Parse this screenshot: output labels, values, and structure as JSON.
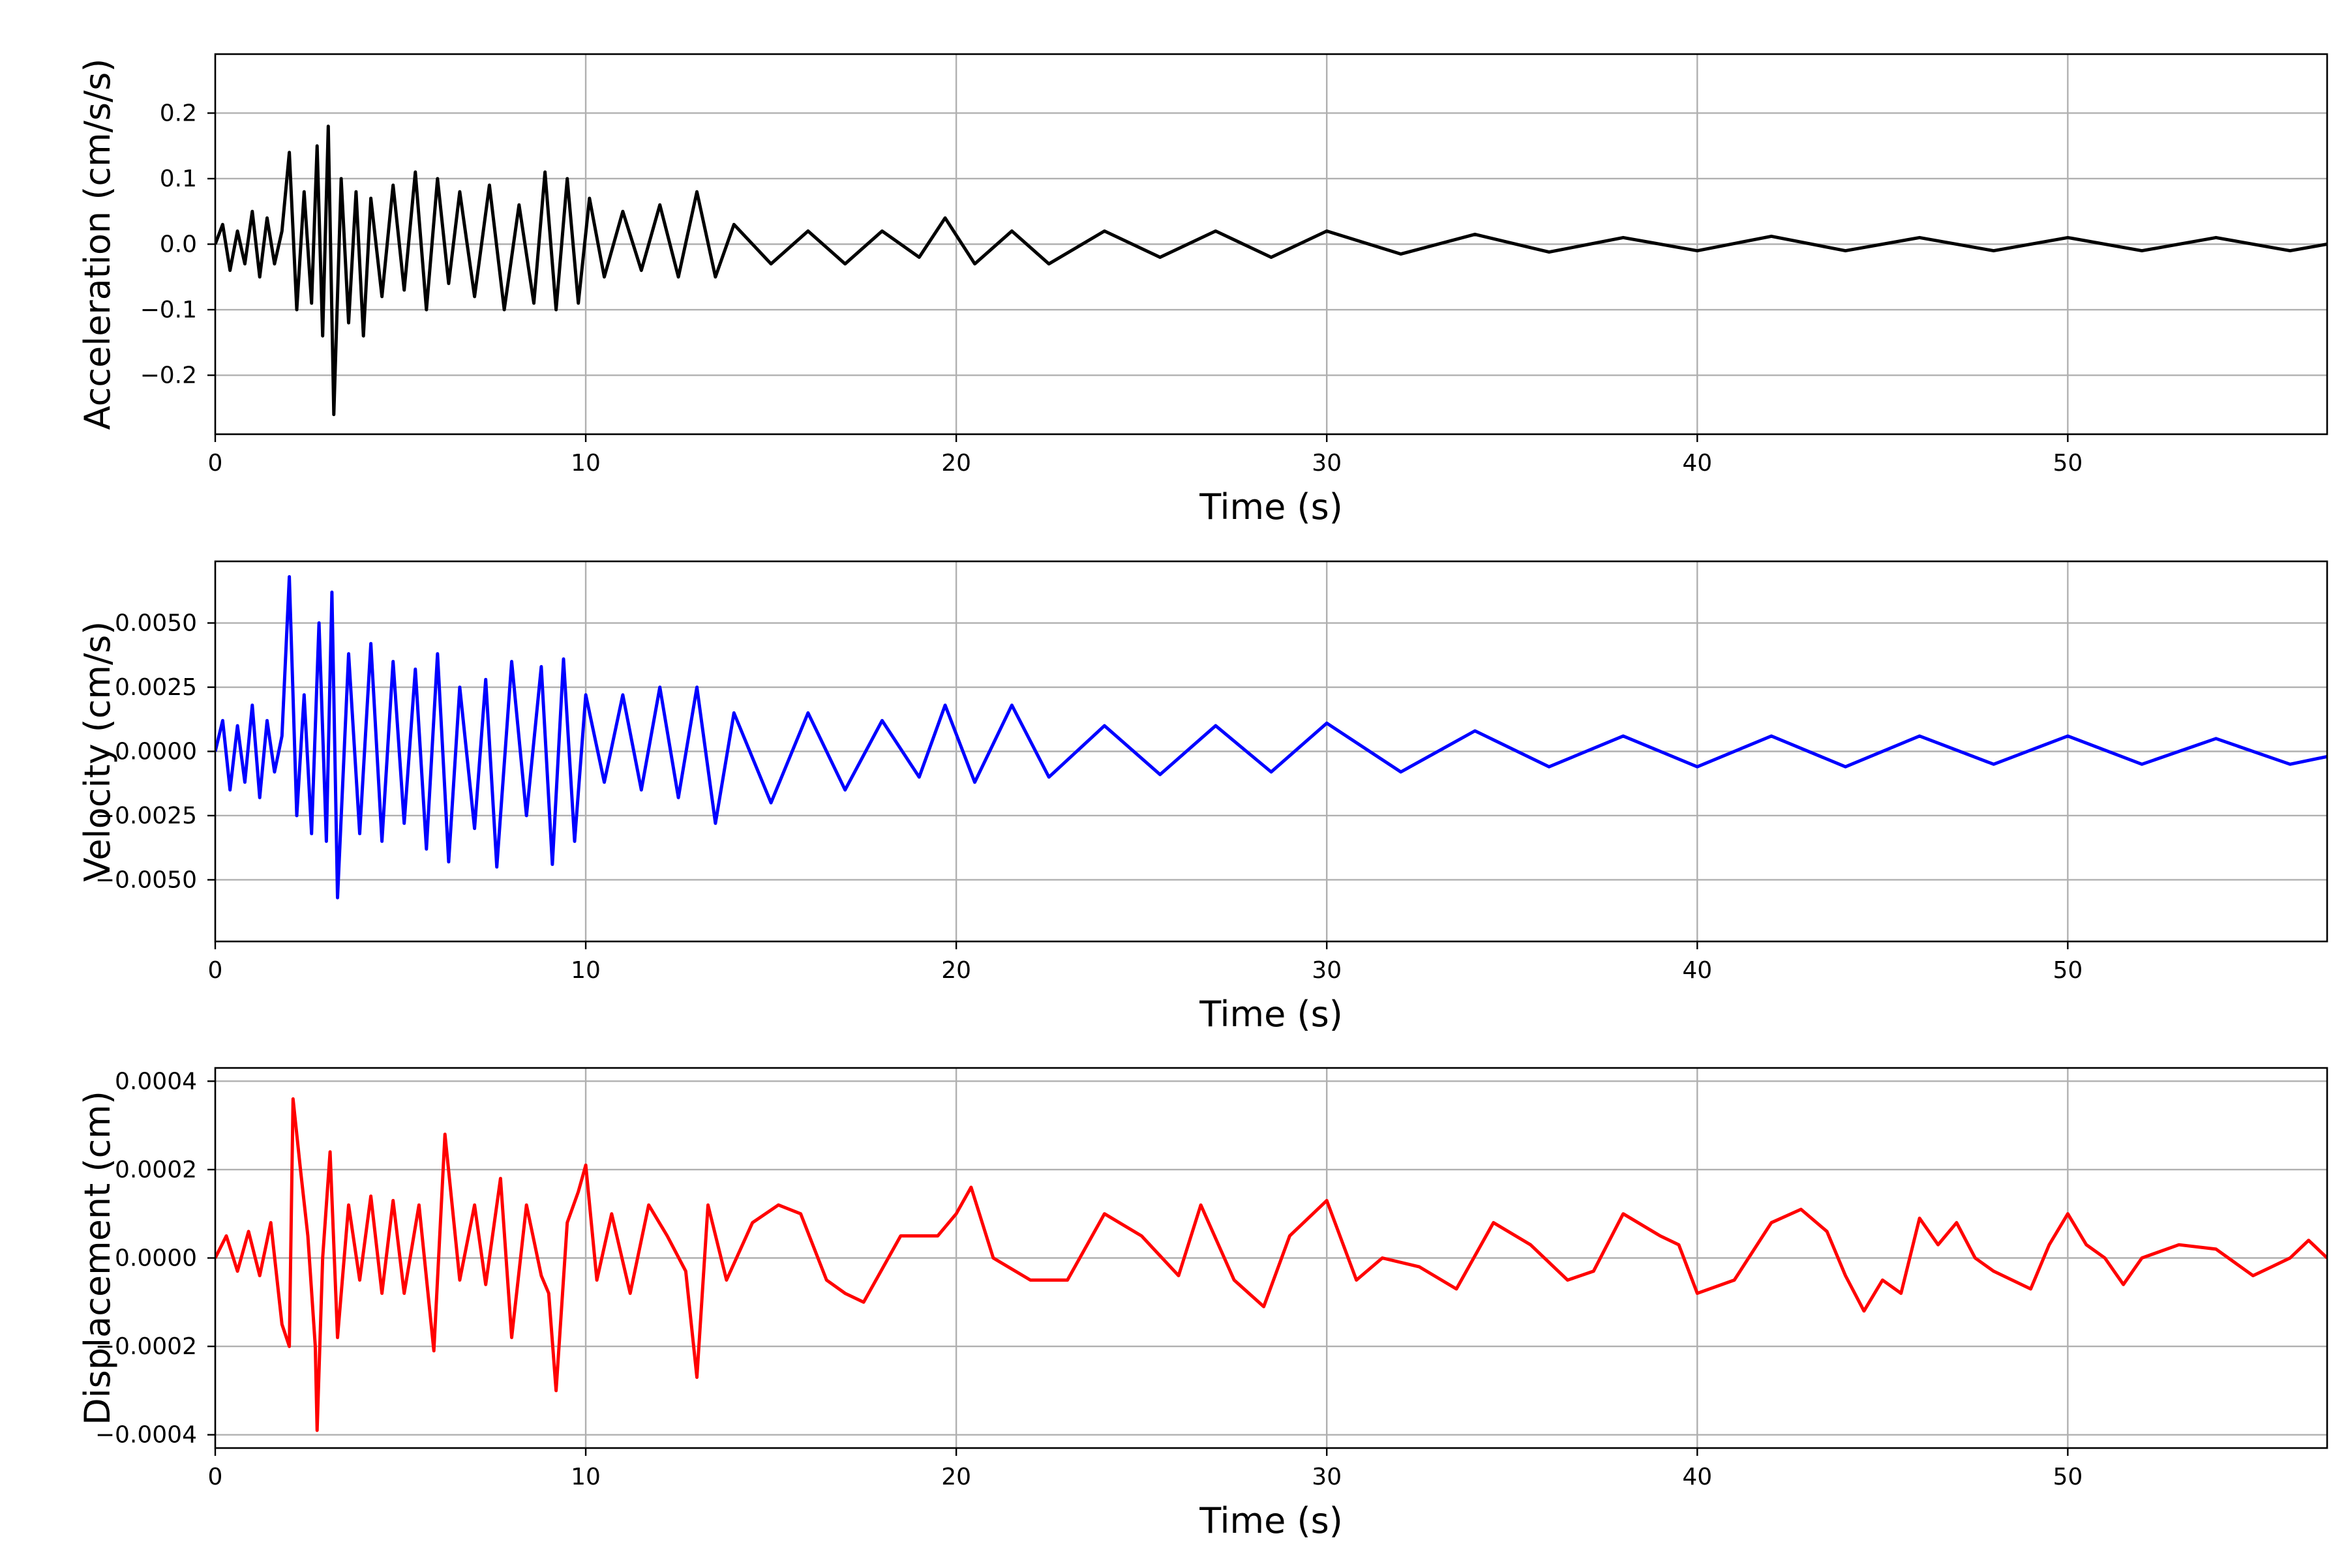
{
  "chart_data": [
    {
      "type": "line",
      "title": "",
      "xlabel": "Time (s)",
      "ylabel": "Acceleration (cm/s/s)",
      "xlim": [
        0,
        57
      ],
      "ylim": [
        -0.29,
        0.29
      ],
      "xticks": [
        0,
        10,
        20,
        30,
        40,
        50
      ],
      "xtick_labels": [
        "0",
        "10",
        "20",
        "30",
        "40",
        "50"
      ],
      "yticks": [
        -0.2,
        -0.1,
        0.0,
        0.1,
        0.2
      ],
      "ytick_labels": [
        "−0.2",
        "−0.1",
        "0.0",
        "0.1",
        "0.2"
      ],
      "grid": true,
      "series": [
        {
          "color": "#000000",
          "x": [
            0,
            0.2,
            0.4,
            0.6,
            0.8,
            1.0,
            1.2,
            1.4,
            1.6,
            1.8,
            2.0,
            2.2,
            2.4,
            2.6,
            2.75,
            2.9,
            3.05,
            3.2,
            3.4,
            3.6,
            3.8,
            4.0,
            4.2,
            4.5,
            4.8,
            5.1,
            5.4,
            5.7,
            6.0,
            6.3,
            6.6,
            7.0,
            7.4,
            7.8,
            8.2,
            8.6,
            8.9,
            9.2,
            9.5,
            9.8,
            10.1,
            10.5,
            11.0,
            11.5,
            12.0,
            12.5,
            13.0,
            13.5,
            14.0,
            15.0,
            16.0,
            17.0,
            18.0,
            19.0,
            19.7,
            20.5,
            21.5,
            22.5,
            24.0,
            25.5,
            27.0,
            28.5,
            30.0,
            32.0,
            34.0,
            36.0,
            38.0,
            40.0,
            42.0,
            44.0,
            46.0,
            48.0,
            50.0,
            52.0,
            54.0,
            56.0,
            57.0
          ],
          "y": [
            0.0,
            0.03,
            -0.04,
            0.02,
            -0.03,
            0.05,
            -0.05,
            0.04,
            -0.03,
            0.02,
            0.14,
            -0.1,
            0.08,
            -0.09,
            0.15,
            -0.14,
            0.18,
            -0.26,
            0.1,
            -0.12,
            0.08,
            -0.14,
            0.07,
            -0.08,
            0.09,
            -0.07,
            0.11,
            -0.1,
            0.1,
            -0.06,
            0.08,
            -0.08,
            0.09,
            -0.1,
            0.06,
            -0.09,
            0.11,
            -0.1,
            0.1,
            -0.09,
            0.07,
            -0.05,
            0.05,
            -0.04,
            0.06,
            -0.05,
            0.08,
            -0.05,
            0.03,
            -0.03,
            0.02,
            -0.03,
            0.02,
            -0.02,
            0.04,
            -0.03,
            0.02,
            -0.03,
            0.02,
            -0.02,
            0.02,
            -0.02,
            0.02,
            -0.015,
            0.015,
            -0.012,
            0.01,
            -0.01,
            0.012,
            -0.01,
            0.01,
            -0.01,
            0.01,
            -0.01,
            0.01,
            -0.01,
            0.0
          ]
        }
      ]
    },
    {
      "type": "line",
      "title": "",
      "xlabel": "Time (s)",
      "ylabel": "Velocity (cm/s)",
      "xlim": [
        0,
        57
      ],
      "ylim": [
        -0.0074,
        0.0074
      ],
      "xticks": [
        0,
        10,
        20,
        30,
        40,
        50
      ],
      "xtick_labels": [
        "0",
        "10",
        "20",
        "30",
        "40",
        "50"
      ],
      "yticks": [
        -0.005,
        -0.0025,
        0.0,
        0.0025,
        0.005
      ],
      "ytick_labels": [
        "−0.0050",
        "−0.0025",
        "0.0000",
        "0.0025",
        "0.0050"
      ],
      "grid": true,
      "series": [
        {
          "color": "#0000ff",
          "x": [
            0,
            0.2,
            0.4,
            0.6,
            0.8,
            1.0,
            1.2,
            1.4,
            1.6,
            1.8,
            2.0,
            2.2,
            2.4,
            2.6,
            2.8,
            3.0,
            3.15,
            3.3,
            3.6,
            3.9,
            4.2,
            4.5,
            4.8,
            5.1,
            5.4,
            5.7,
            6.0,
            6.3,
            6.6,
            7.0,
            7.3,
            7.6,
            8.0,
            8.4,
            8.8,
            9.1,
            9.4,
            9.7,
            10.0,
            10.5,
            11.0,
            11.5,
            12.0,
            12.5,
            13.0,
            13.5,
            14.0,
            15.0,
            16.0,
            17.0,
            18.0,
            19.0,
            19.7,
            20.5,
            21.5,
            22.5,
            24.0,
            25.5,
            27.0,
            28.5,
            30.0,
            32.0,
            34.0,
            36.0,
            38.0,
            40.0,
            42.0,
            44.0,
            46.0,
            48.0,
            50.0,
            52.0,
            54.0,
            56.0,
            57.0
          ],
          "y": [
            0.0,
            0.0012,
            -0.0015,
            0.001,
            -0.0012,
            0.0018,
            -0.0018,
            0.0012,
            -0.0008,
            0.0006,
            0.0068,
            -0.0025,
            0.0022,
            -0.0032,
            0.005,
            -0.0035,
            0.0062,
            -0.0057,
            0.0038,
            -0.0032,
            0.0042,
            -0.0035,
            0.0035,
            -0.0028,
            0.0032,
            -0.0038,
            0.0038,
            -0.0043,
            0.0025,
            -0.003,
            0.0028,
            -0.0045,
            0.0035,
            -0.0025,
            0.0033,
            -0.0044,
            0.0036,
            -0.0035,
            0.0022,
            -0.0012,
            0.0022,
            -0.0015,
            0.0025,
            -0.0018,
            0.0025,
            -0.0028,
            0.0015,
            -0.002,
            0.0015,
            -0.0015,
            0.0012,
            -0.001,
            0.0018,
            -0.0012,
            0.0018,
            -0.001,
            0.001,
            -0.0009,
            0.001,
            -0.0008,
            0.0011,
            -0.0008,
            0.0008,
            -0.0006,
            0.0006,
            -0.0006,
            0.0006,
            -0.0006,
            0.0006,
            -0.0005,
            0.0006,
            -0.0005,
            0.0005,
            -0.0005,
            -0.0002
          ]
        }
      ]
    },
    {
      "type": "line",
      "title": "",
      "xlabel": "Time (s)",
      "ylabel": "Displacement (cm)",
      "xlim": [
        0,
        57
      ],
      "ylim": [
        -0.00043,
        0.00043
      ],
      "xticks": [
        0,
        10,
        20,
        30,
        40,
        50
      ],
      "xtick_labels": [
        "0",
        "10",
        "20",
        "30",
        "40",
        "50"
      ],
      "yticks": [
        -0.0004,
        -0.0002,
        0.0,
        0.0002,
        0.0004
      ],
      "ytick_labels": [
        "−0.0004",
        "−0.0002",
        "0.0000",
        "0.0002",
        "0.0004"
      ],
      "grid": true,
      "series": [
        {
          "color": "#ff0000",
          "x": [
            0,
            0.3,
            0.6,
            0.9,
            1.2,
            1.5,
            1.8,
            2.0,
            2.1,
            2.3,
            2.5,
            2.7,
            2.75,
            2.9,
            3.1,
            3.3,
            3.6,
            3.9,
            4.2,
            4.5,
            4.8,
            5.1,
            5.5,
            5.9,
            6.2,
            6.6,
            7.0,
            7.3,
            7.7,
            8.0,
            8.4,
            8.8,
            9.0,
            9.2,
            9.5,
            9.8,
            10.0,
            10.3,
            10.7,
            11.2,
            11.7,
            12.2,
            12.7,
            13.0,
            13.3,
            13.8,
            14.5,
            15.2,
            15.8,
            16.5,
            17.0,
            17.5,
            18.5,
            19.5,
            20.0,
            20.4,
            21.0,
            22.0,
            23.0,
            24.0,
            25.0,
            26.0,
            26.6,
            27.5,
            28.3,
            29.0,
            30.0,
            30.8,
            31.5,
            32.5,
            33.5,
            34.5,
            35.5,
            36.5,
            37.2,
            38.0,
            39.0,
            39.5,
            40.0,
            41.0,
            42.0,
            42.8,
            43.5,
            44.0,
            44.5,
            45.0,
            45.5,
            46.0,
            46.5,
            47.0,
            47.5,
            48.0,
            49.0,
            49.5,
            50.0,
            50.5,
            51.0,
            51.5,
            52.0,
            53.0,
            54.0,
            55.0,
            55.5,
            56.0,
            56.5,
            57.0
          ],
          "y": [
            0.0,
            5e-05,
            -3e-05,
            6e-05,
            -4e-05,
            8e-05,
            -0.00015,
            -0.0002,
            0.00036,
            0.0002,
            5e-05,
            -0.0002,
            -0.00039,
            0.0,
            0.00024,
            -0.00018,
            0.00012,
            -5e-05,
            0.00014,
            -8e-05,
            0.00013,
            -8e-05,
            0.00012,
            -0.00021,
            0.00028,
            -5e-05,
            0.00012,
            -6e-05,
            0.00018,
            -0.00018,
            0.00012,
            -4e-05,
            -8e-05,
            -0.0003,
            8e-05,
            0.00015,
            0.00021,
            -5e-05,
            0.0001,
            -8e-05,
            0.00012,
            5e-05,
            -3e-05,
            -0.00027,
            0.00012,
            -5e-05,
            8e-05,
            0.00012,
            0.0001,
            -5e-05,
            -8e-05,
            -0.0001,
            5e-05,
            5e-05,
            0.0001,
            0.00016,
            0.0,
            -5e-05,
            -5e-05,
            0.0001,
            5e-05,
            -4e-05,
            0.00012,
            -5e-05,
            -0.00011,
            5e-05,
            0.00013,
            -5e-05,
            0.0,
            -2e-05,
            -7e-05,
            8e-05,
            3e-05,
            -5e-05,
            -3e-05,
            0.0001,
            5e-05,
            3e-05,
            -8e-05,
            -5e-05,
            8e-05,
            0.00011,
            6e-05,
            -4e-05,
            -0.00012,
            -5e-05,
            -8e-05,
            9e-05,
            3e-05,
            8e-05,
            0.0,
            -3e-05,
            -7e-05,
            3e-05,
            0.0001,
            3e-05,
            0.0,
            -6e-05,
            0.0,
            3e-05,
            2e-05,
            -4e-05,
            -2e-05,
            0.0,
            4e-05,
            0.0
          ]
        }
      ]
    }
  ]
}
